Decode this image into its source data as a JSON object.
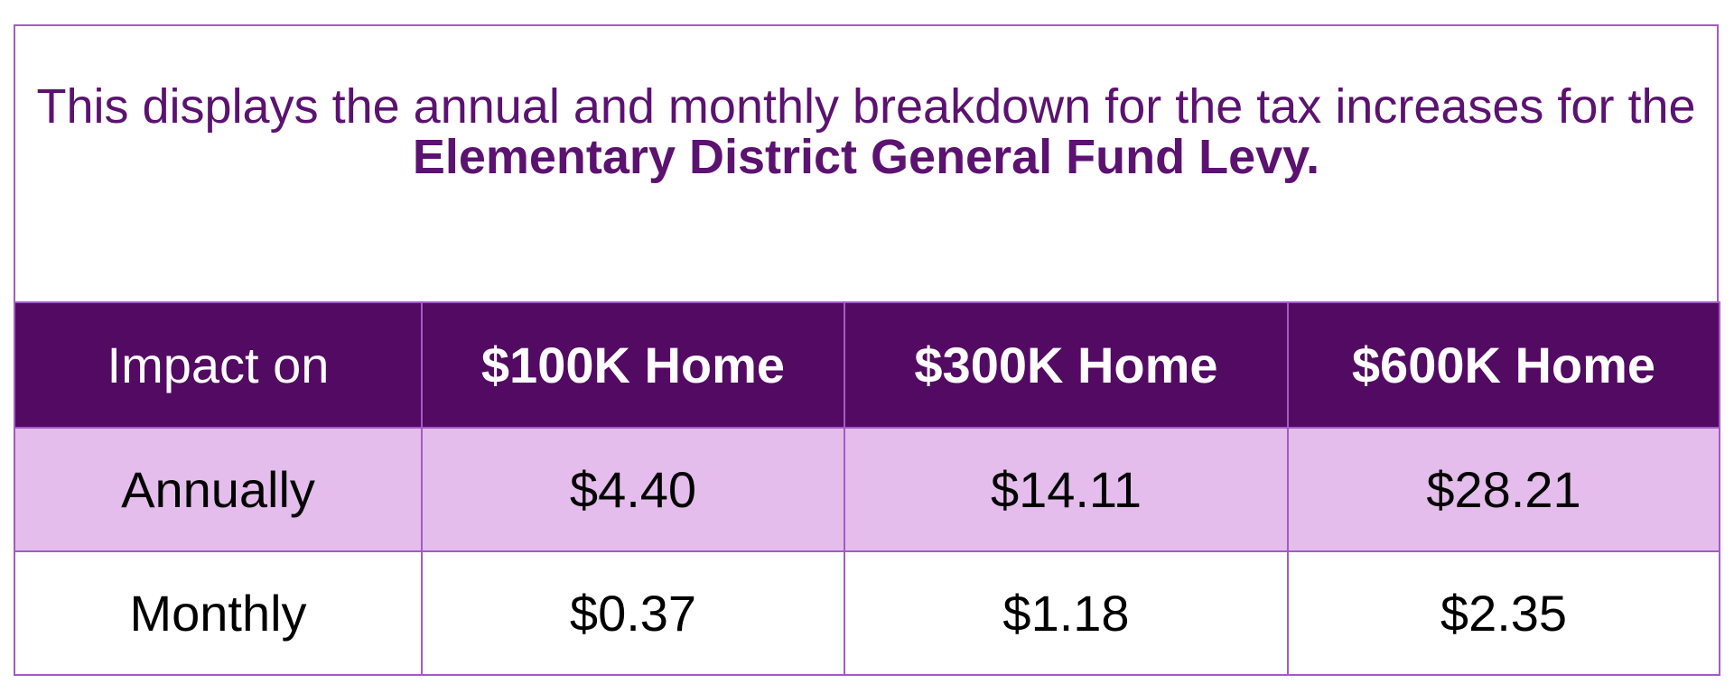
{
  "intro": {
    "text_prefix": "This displays the annual and monthly breakdown for the tax increases for the ",
    "text_emphasis": "Elementary District General Fund Levy."
  },
  "table": {
    "header": {
      "label": "Impact on",
      "columns": [
        "$100K Home",
        "$300K Home",
        "$600K Home"
      ]
    },
    "rows": [
      {
        "label": "Annually",
        "values": [
          "$4.40",
          "$14.11",
          "$28.21"
        ]
      },
      {
        "label": "Monthly",
        "values": [
          "$0.37",
          "$1.18",
          "$2.35"
        ]
      }
    ]
  },
  "colors": {
    "header_background": "#530a63",
    "annual_row_background": "#e4bdec",
    "border": "#a35bc4",
    "intro_text": "#5b1270"
  }
}
